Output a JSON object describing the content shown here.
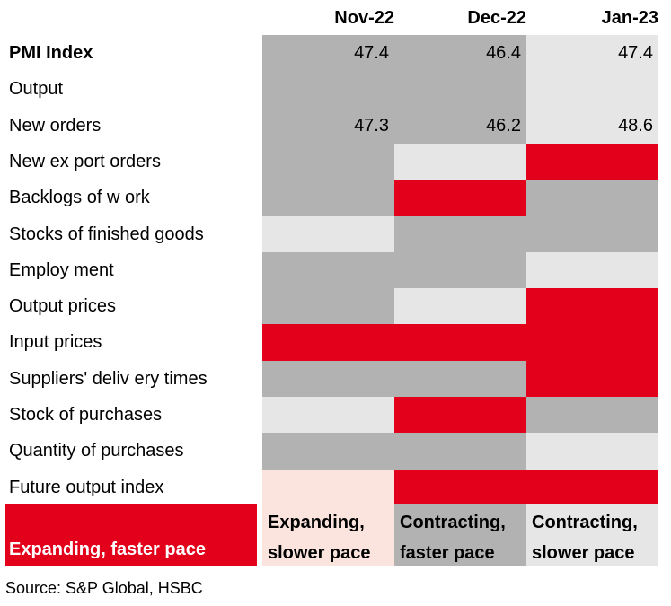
{
  "chart_data": {
    "type": "table",
    "columns": [
      "Nov-22",
      "Dec-22",
      "Jan-23"
    ],
    "rows": [
      {
        "label": "PMI Index",
        "bold": true,
        "values": [
          "47.4",
          "46.4",
          "47.4"
        ],
        "states": [
          "contract_faster",
          "contract_faster",
          "contract_slower"
        ]
      },
      {
        "label": "Output",
        "bold": false,
        "values": [
          "",
          "",
          ""
        ],
        "states": [
          "contract_faster",
          "contract_faster",
          "contract_slower"
        ]
      },
      {
        "label": "New orders",
        "bold": false,
        "values": [
          "47.3",
          "46.2",
          "48.6"
        ],
        "states": [
          "contract_faster",
          "contract_faster",
          "contract_slower"
        ]
      },
      {
        "label": "New ex port orders",
        "bold": false,
        "values": [
          "",
          "",
          ""
        ],
        "states": [
          "contract_faster",
          "contract_slower",
          "expand_faster"
        ]
      },
      {
        "label": "Backlogs of w ork",
        "bold": false,
        "values": [
          "",
          "",
          ""
        ],
        "states": [
          "contract_faster",
          "expand_faster",
          "contract_faster"
        ]
      },
      {
        "label": "Stocks of finished goods",
        "bold": false,
        "values": [
          "",
          "",
          ""
        ],
        "states": [
          "contract_slower",
          "contract_faster",
          "contract_faster"
        ]
      },
      {
        "label": "Employ ment",
        "bold": false,
        "values": [
          "",
          "",
          ""
        ],
        "states": [
          "contract_faster",
          "contract_faster",
          "contract_slower"
        ]
      },
      {
        "label": "Output prices",
        "bold": false,
        "values": [
          "",
          "",
          ""
        ],
        "states": [
          "contract_faster",
          "contract_slower",
          "expand_faster"
        ]
      },
      {
        "label": "Input prices",
        "bold": false,
        "values": [
          "",
          "",
          ""
        ],
        "states": [
          "expand_faster",
          "expand_faster",
          "expand_faster"
        ]
      },
      {
        "label": "Suppliers' deliv ery  times",
        "bold": false,
        "values": [
          "",
          "",
          ""
        ],
        "states": [
          "contract_faster",
          "contract_faster",
          "expand_faster"
        ]
      },
      {
        "label": "Stock of purchases",
        "bold": false,
        "values": [
          "",
          "",
          ""
        ],
        "states": [
          "contract_slower",
          "expand_faster",
          "contract_faster"
        ]
      },
      {
        "label": "Quantity  of purchases",
        "bold": false,
        "values": [
          "",
          "",
          ""
        ],
        "states": [
          "contract_faster",
          "contract_faster",
          "contract_slower"
        ]
      },
      {
        "label": "Future output index",
        "bold": false,
        "values": [
          "",
          "",
          ""
        ],
        "states": [
          "expand_slower",
          "expand_faster",
          "expand_faster"
        ]
      }
    ],
    "legend": [
      {
        "key": "expand_faster",
        "line1": "",
        "line2": "Expanding, faster pace"
      },
      {
        "key": "expand_slower",
        "line1": "Expanding,",
        "line2": "slower pace"
      },
      {
        "key": "contract_faster",
        "line1": "Contracting,",
        "line2": "faster pace"
      },
      {
        "key": "contract_slower",
        "line1": "Contracting,",
        "line2": "slower pace"
      }
    ]
  },
  "colors": {
    "expand_faster": "#e2001a",
    "expand_slower": "#fbe4dd",
    "contract_faster": "#b2b2b2",
    "contract_slower": "#e6e6e6",
    "legend_expand_faster_text": "#ffffff",
    "legend_text": "#000000"
  },
  "source": "Source: S&P Global, HSBC"
}
